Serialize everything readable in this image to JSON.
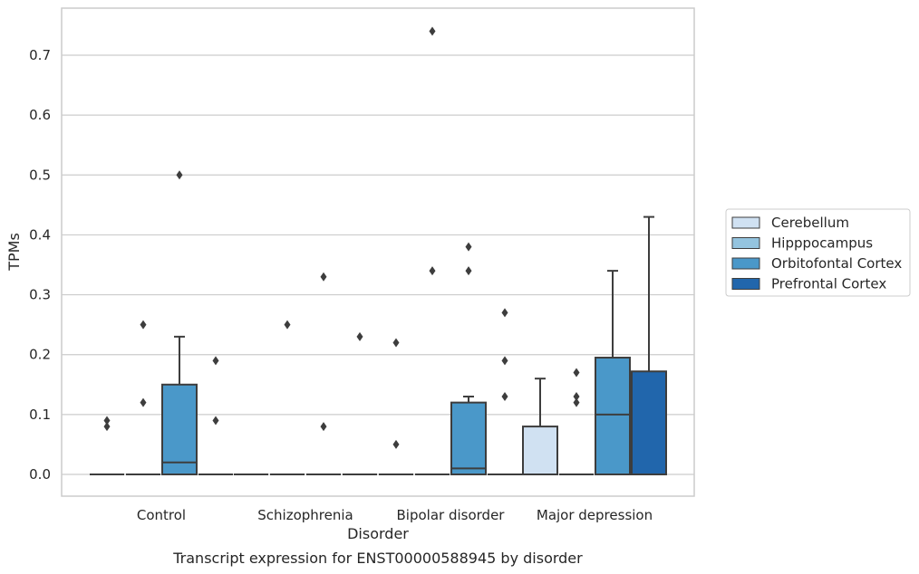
{
  "chart_data": {
    "type": "box",
    "title": "",
    "caption": "Transcript expression for ENST00000588945 by disorder",
    "xlabel": "Disorder",
    "ylabel": "TPMs",
    "ylim": [
      -0.035,
      0.775
    ],
    "yticks": [
      0.0,
      0.1,
      0.2,
      0.3,
      0.4,
      0.5,
      0.6,
      0.7
    ],
    "ytick_labels": [
      "0.0",
      "0.1",
      "0.2",
      "0.3",
      "0.4",
      "0.5",
      "0.6",
      "0.7"
    ],
    "categories": [
      "Control",
      "Schizophrenia",
      "Bipolar disorder",
      "Major depression"
    ],
    "grid": "horizontal",
    "legend_position": "right",
    "series": [
      {
        "name": "Cerebellum",
        "color": "#d0e1f2",
        "boxes": [
          {
            "min": 0,
            "q1": 0,
            "median": 0,
            "q3": 0,
            "max": 0,
            "outliers": [
              0.08,
              0.09
            ]
          },
          {
            "min": 0,
            "q1": 0,
            "median": 0,
            "q3": 0,
            "max": 0,
            "outliers": []
          },
          {
            "min": 0,
            "q1": 0,
            "median": 0,
            "q3": 0,
            "max": 0,
            "outliers": [
              0.05,
              0.22
            ]
          },
          {
            "min": 0,
            "q1": 0,
            "median": 0,
            "q3": 0.08,
            "max": 0.16,
            "outliers": []
          }
        ]
      },
      {
        "name": "Hipppocampus",
        "color": "#94c4df",
        "boxes": [
          {
            "min": 0,
            "q1": 0,
            "median": 0,
            "q3": 0,
            "max": 0,
            "outliers": [
              0.12,
              0.25
            ]
          },
          {
            "min": 0,
            "q1": 0,
            "median": 0,
            "q3": 0,
            "max": 0,
            "outliers": [
              0.25
            ]
          },
          {
            "min": 0,
            "q1": 0,
            "median": 0,
            "q3": 0,
            "max": 0,
            "outliers": [
              0.34,
              0.74
            ]
          },
          {
            "min": 0,
            "q1": 0,
            "median": 0,
            "q3": 0,
            "max": 0,
            "outliers": [
              0.12,
              0.13,
              0.17
            ]
          }
        ]
      },
      {
        "name": "Orbitofontal Cortex",
        "color": "#4a98c9",
        "boxes": [
          {
            "min": 0,
            "q1": 0,
            "median": 0.02,
            "q3": 0.15,
            "max": 0.23,
            "outliers": [
              0.5
            ]
          },
          {
            "min": 0,
            "q1": 0,
            "median": 0,
            "q3": 0,
            "max": 0,
            "outliers": [
              0.08,
              0.33
            ]
          },
          {
            "min": 0,
            "q1": 0,
            "median": 0.01,
            "q3": 0.12,
            "max": 0.13,
            "outliers": [
              0.34,
              0.38
            ]
          },
          {
            "min": 0,
            "q1": 0,
            "median": 0.1,
            "q3": 0.195,
            "max": 0.34,
            "outliers": []
          }
        ]
      },
      {
        "name": "Prefrontal Cortex",
        "color": "#2166ac",
        "boxes": [
          {
            "min": 0,
            "q1": 0,
            "median": 0,
            "q3": 0,
            "max": 0,
            "outliers": [
              0.09,
              0.19
            ]
          },
          {
            "min": 0,
            "q1": 0,
            "median": 0,
            "q3": 0,
            "max": 0,
            "outliers": [
              0.23
            ]
          },
          {
            "min": 0,
            "q1": 0,
            "median": 0,
            "q3": 0,
            "max": 0,
            "outliers": [
              0.13,
              0.19,
              0.27
            ]
          },
          {
            "min": 0,
            "q1": 0,
            "median": 0,
            "q3": 0.172,
            "max": 0.43,
            "outliers": []
          }
        ]
      }
    ]
  }
}
